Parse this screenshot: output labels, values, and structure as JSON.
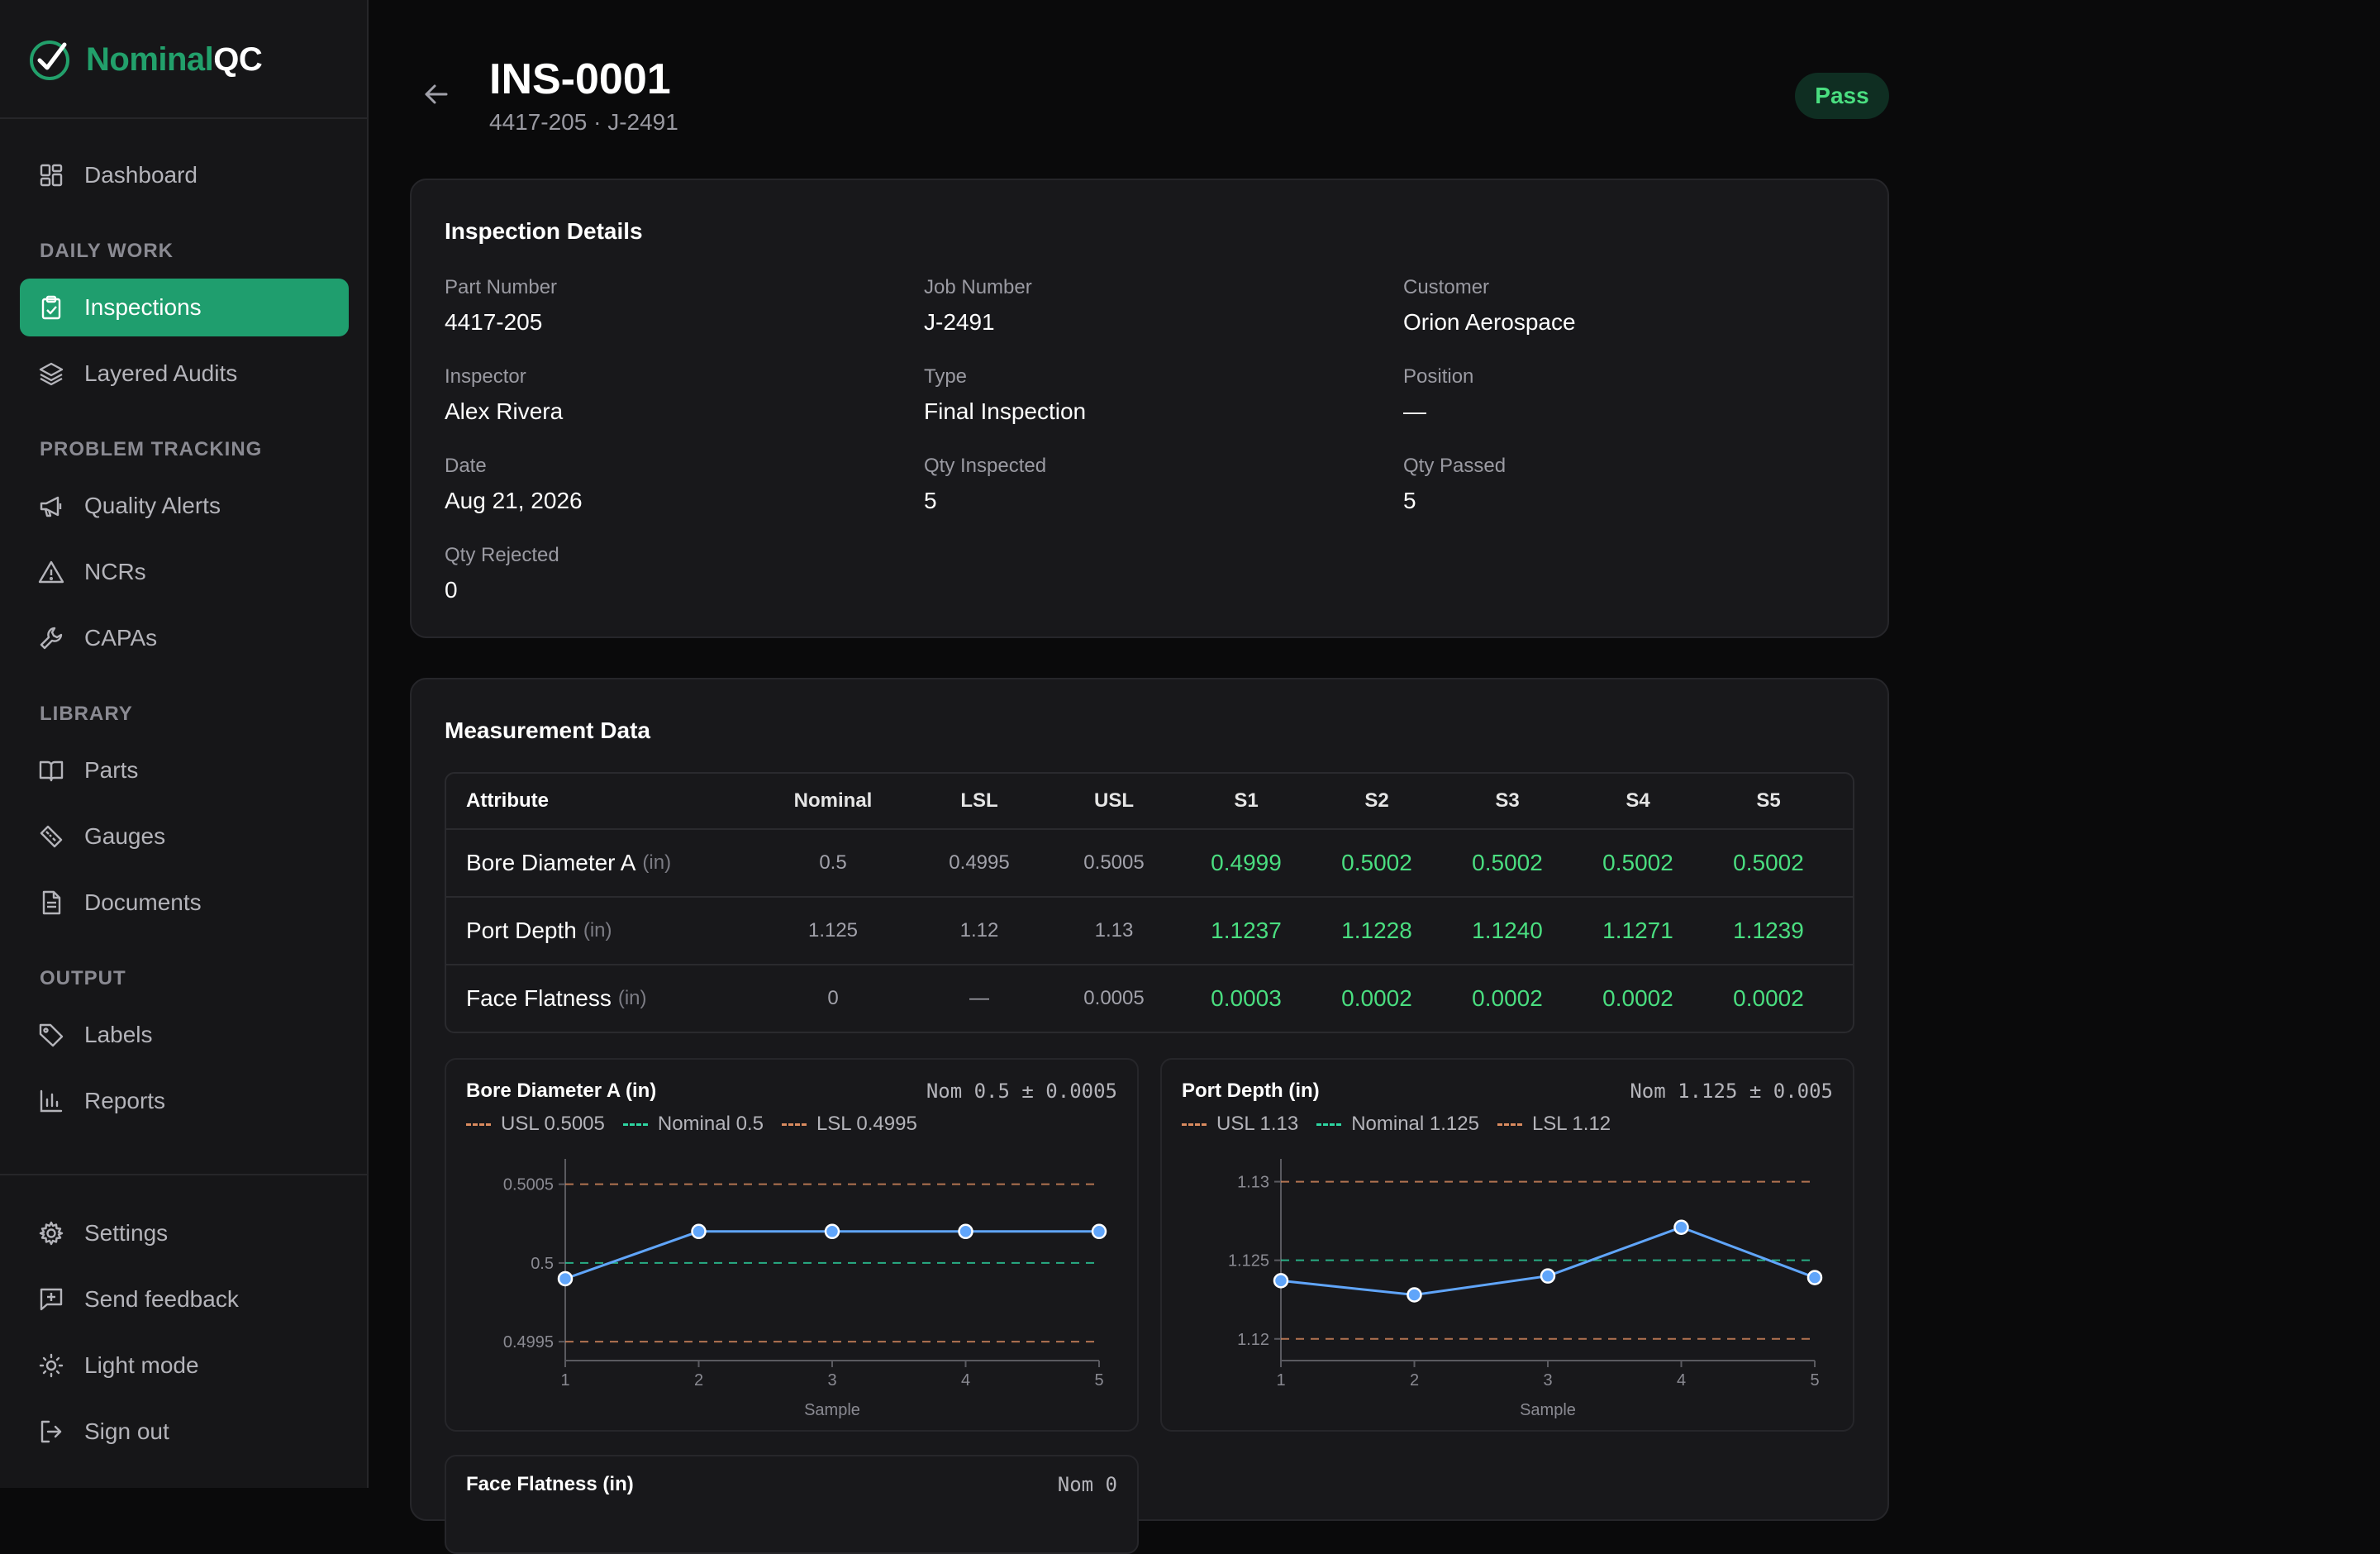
{
  "app": {
    "brand_part1": "Nominal",
    "brand_part2": "QC"
  },
  "sidebar": {
    "dashboard": "Dashboard",
    "section_daily": "DAILY WORK",
    "inspections": "Inspections",
    "layered_audits": "Layered Audits",
    "section_problem": "PROBLEM TRACKING",
    "quality_alerts": "Quality Alerts",
    "ncrs": "NCRs",
    "capas": "CAPAs",
    "section_library": "LIBRARY",
    "parts": "Parts",
    "gauges": "Gauges",
    "documents": "Documents",
    "section_output": "OUTPUT",
    "labels": "Labels",
    "reports": "Reports",
    "settings": "Settings",
    "send_feedback": "Send feedback",
    "light_mode": "Light mode",
    "sign_out": "Sign out"
  },
  "header": {
    "title": "INS-0001",
    "subtitle": "4417-205 · J-2491",
    "status": "Pass"
  },
  "details": {
    "title": "Inspection Details",
    "fields": [
      {
        "label": "Part Number",
        "value": "4417-205"
      },
      {
        "label": "Job Number",
        "value": "J-2491"
      },
      {
        "label": "Customer",
        "value": "Orion Aerospace"
      },
      {
        "label": "Inspector",
        "value": "Alex Rivera"
      },
      {
        "label": "Type",
        "value": "Final Inspection"
      },
      {
        "label": "Position",
        "value": "—"
      },
      {
        "label": "Date",
        "value": "Aug 21, 2026"
      },
      {
        "label": "Qty Inspected",
        "value": "5"
      },
      {
        "label": "Qty Passed",
        "value": "5"
      },
      {
        "label": "Qty Rejected",
        "value": "0"
      }
    ]
  },
  "measurements": {
    "title": "Measurement Data",
    "columns": [
      "Attribute",
      "Nominal",
      "LSL",
      "USL",
      "S1",
      "S2",
      "S3",
      "S4",
      "S5"
    ],
    "rows": [
      {
        "attribute": "Bore Diameter A",
        "unit": "(in)",
        "nominal": "0.5",
        "lsl": "0.4995",
        "usl": "0.5005",
        "samples": [
          "0.4999",
          "0.5002",
          "0.5002",
          "0.5002",
          "0.5002"
        ]
      },
      {
        "attribute": "Port Depth",
        "unit": "(in)",
        "nominal": "1.125",
        "lsl": "1.12",
        "usl": "1.13",
        "samples": [
          "1.1237",
          "1.1228",
          "1.1240",
          "1.1271",
          "1.1239"
        ]
      },
      {
        "attribute": "Face Flatness",
        "unit": "(in)",
        "nominal": "0",
        "lsl": "—",
        "usl": "0.0005",
        "samples": [
          "0.0003",
          "0.0002",
          "0.0002",
          "0.0002",
          "0.0002"
        ]
      }
    ]
  },
  "colors": {
    "accent": "#1f9e6e",
    "pass": "#4ade80",
    "usl_lsl": "#d98a5f",
    "nominal": "#2dd4a0",
    "series": "#60a5fa"
  },
  "chart_data": [
    {
      "type": "line",
      "title": "Bore Diameter A (in)",
      "nominal_text": "Nom 0.5 ± 0.0005",
      "legend": [
        "USL 0.5005",
        "Nominal 0.5",
        "LSL 0.4995"
      ],
      "xlabel": "Sample",
      "x": [
        1,
        2,
        3,
        4,
        5
      ],
      "x_ticks": [
        "1",
        "2",
        "3",
        "4",
        "5"
      ],
      "y": [
        0.4999,
        0.5002,
        0.5002,
        0.5002,
        0.5002
      ],
      "usl": 0.5005,
      "nominal": 0.5,
      "lsl": 0.4995,
      "y_ticks": [
        "0.5005",
        "0.5",
        "0.4995"
      ],
      "y_tick_values": [
        0.5005,
        0.5,
        0.4995
      ],
      "ylim": [
        0.49938,
        0.50064
      ]
    },
    {
      "type": "line",
      "title": "Port Depth (in)",
      "nominal_text": "Nom 1.125 ± 0.005",
      "legend": [
        "USL 1.13",
        "Nominal 1.125",
        "LSL 1.12"
      ],
      "xlabel": "Sample",
      "x": [
        1,
        2,
        3,
        4,
        5
      ],
      "x_ticks": [
        "1",
        "2",
        "3",
        "4",
        "5"
      ],
      "y": [
        1.1237,
        1.1228,
        1.124,
        1.1271,
        1.1239
      ],
      "usl": 1.13,
      "nominal": 1.125,
      "lsl": 1.12,
      "y_ticks": [
        "1.13",
        "1.125",
        "1.12"
      ],
      "y_tick_values": [
        1.13,
        1.125,
        1.12
      ],
      "ylim": [
        1.11862,
        1.13124
      ]
    }
  ],
  "partial_chart": {
    "title": "Face Flatness (in)",
    "nominal_text": "Nom 0"
  }
}
